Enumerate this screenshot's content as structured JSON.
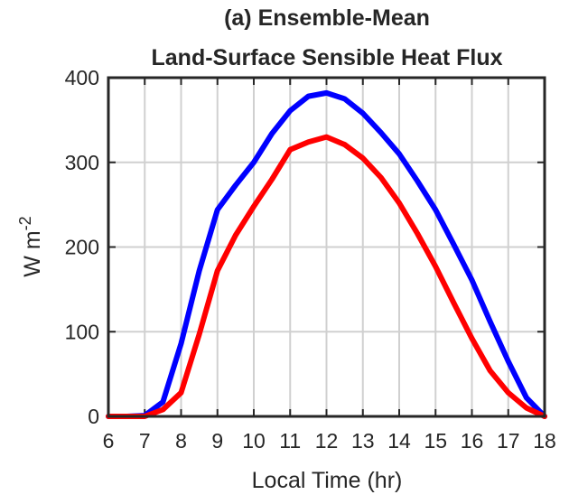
{
  "chart_data": {
    "type": "line",
    "title": [
      "(a) Ensemble-Mean",
      "Land-Surface Sensible Heat Flux"
    ],
    "xlabel": "Local Time (hr)",
    "ylabel": {
      "base": "W m",
      "exponent": "-2"
    },
    "x": [
      6,
      6.5,
      7,
      7.5,
      8,
      8.5,
      9,
      9.5,
      10,
      10.5,
      11,
      11.5,
      12,
      12.5,
      13,
      13.5,
      14,
      14.5,
      15,
      15.5,
      16,
      16.5,
      17,
      17.5,
      18
    ],
    "series": [
      {
        "color": "#0000ff",
        "values": [
          0,
          0,
          1,
          17,
          86,
          172,
          244,
          273,
          300,
          334,
          361,
          378,
          382,
          375,
          358,
          335,
          310,
          278,
          244,
          203,
          161,
          112,
          65,
          22,
          0
        ]
      },
      {
        "color": "#ff0000",
        "values": [
          0,
          0,
          0,
          8,
          28,
          97,
          172,
          214,
          248,
          280,
          315,
          324,
          330,
          321,
          305,
          282,
          252,
          216,
          177,
          134,
          92,
          54,
          28,
          10,
          0
        ]
      }
    ],
    "xlim": [
      6,
      18
    ],
    "xticks": [
      6,
      7,
      8,
      9,
      10,
      11,
      12,
      13,
      14,
      15,
      16,
      17,
      18
    ],
    "ylim": [
      0,
      400
    ],
    "yticks": [
      0,
      100,
      200,
      300,
      400
    ],
    "grid": true
  }
}
